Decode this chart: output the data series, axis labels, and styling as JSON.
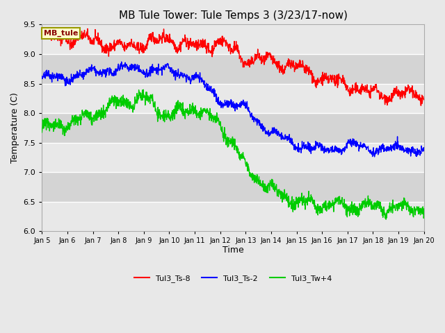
{
  "title": "MB Tule Tower: Tule Temps 3 (3/23/17-now)",
  "xlabel": "Time",
  "ylabel": "Temperature (C)",
  "ylim": [
    6.0,
    9.5
  ],
  "yticks": [
    6.0,
    6.5,
    7.0,
    7.5,
    8.0,
    8.5,
    9.0,
    9.5
  ],
  "x_start_day": 5,
  "x_end_day": 20,
  "xtick_days": [
    5,
    6,
    7,
    8,
    9,
    10,
    11,
    12,
    13,
    14,
    15,
    16,
    17,
    18,
    19,
    20
  ],
  "xtick_labels": [
    "Jan 5",
    "Jan 6",
    "Jan 7",
    "Jan 8",
    "Jan 9",
    "Jan 10",
    "Jan 11",
    "Jan 12",
    "Jan 13",
    "Jan 14",
    "Jan 15",
    "Jan 16",
    "Jan 17",
    "Jan 18",
    "Jan 19",
    "Jan 20"
  ],
  "line_colors": [
    "#ff0000",
    "#0000ff",
    "#00cc00"
  ],
  "line_labels": [
    "Tul3_Ts-8",
    "Tul3_Ts-2",
    "Tul3_Tw+4"
  ],
  "bg_color": "#e8e8e8",
  "plot_bg_color": "#e8e8e8",
  "grid_color": "#ffffff",
  "band_dark": "#d4d4d4",
  "band_light": "#e8e8e8",
  "legend_box_color": "#ffffcc",
  "legend_box_edge": "#999900",
  "legend_box_text": "MB_tule",
  "n_points": 1500,
  "seed": 42,
  "title_fontsize": 11,
  "label_fontsize": 9,
  "tick_fontsize": 8
}
